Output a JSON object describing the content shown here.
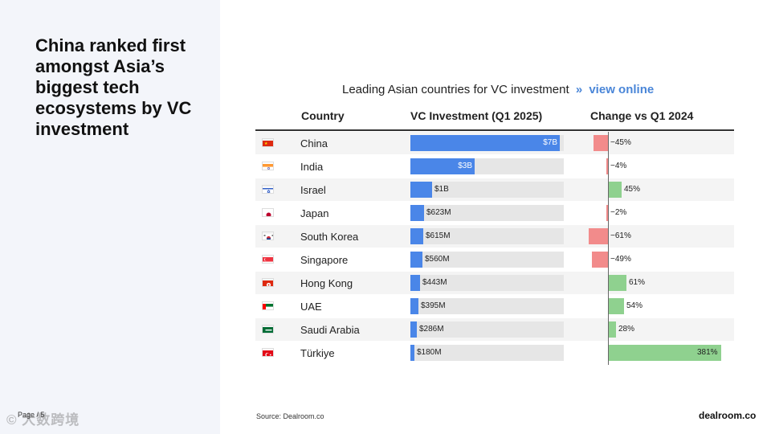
{
  "headline": "China ranked first amongst Asia’s biggest tech ecosystems by VC investment",
  "page_label": "Page / 5",
  "watermark": "© 大数跨境",
  "chart_title": "Leading Asian countries for VC investment",
  "chart_link_sep": "»",
  "chart_link": "view online",
  "columns": {
    "country": "Country",
    "investment": "VC Investment (Q1 2025)",
    "change": "Change vs Q1 2024"
  },
  "source": "Source:  Dealroom.co",
  "logo": "dealroom.co",
  "colors": {
    "investment_bar": "#4a86e8",
    "negative": "#f28b8b",
    "positive": "#8fd18f",
    "track": "#e6e6e6"
  },
  "chart_data": {
    "type": "table",
    "title": "Leading Asian countries for VC investment",
    "columns": [
      "Country",
      "VC Investment (Q1 2025)",
      "Change vs Q1 2024"
    ],
    "rows": [
      {
        "flag": "china-flag-icon",
        "country": "China",
        "investment_usd_m": 7000,
        "investment_label": "$7B",
        "change_pct": -45,
        "change_label": "−45%"
      },
      {
        "flag": "india-flag-icon",
        "country": "India",
        "investment_usd_m": 3000,
        "investment_label": "$3B",
        "change_pct": -4,
        "change_label": "−4%"
      },
      {
        "flag": "israel-flag-icon",
        "country": "Israel",
        "investment_usd_m": 1000,
        "investment_label": "$1B",
        "change_pct": 45,
        "change_label": "45%"
      },
      {
        "flag": "japan-flag-icon",
        "country": "Japan",
        "investment_usd_m": 623,
        "investment_label": "$623M",
        "change_pct": -2,
        "change_label": "−2%"
      },
      {
        "flag": "south-korea-flag-icon",
        "country": "South Korea",
        "investment_usd_m": 615,
        "investment_label": "$615M",
        "change_pct": -61,
        "change_label": "−61%"
      },
      {
        "flag": "singapore-flag-icon",
        "country": "Singapore",
        "investment_usd_m": 560,
        "investment_label": "$560M",
        "change_pct": -49,
        "change_label": "−49%"
      },
      {
        "flag": "hong-kong-flag-icon",
        "country": "Hong Kong",
        "investment_usd_m": 443,
        "investment_label": "$443M",
        "change_pct": 61,
        "change_label": "61%"
      },
      {
        "flag": "uae-flag-icon",
        "country": "UAE",
        "investment_usd_m": 395,
        "investment_label": "$395M",
        "change_pct": 54,
        "change_label": "54%"
      },
      {
        "flag": "saudi-arabia-flag-icon",
        "country": "Saudi Arabia",
        "investment_usd_m": 286,
        "investment_label": "$286M",
        "change_pct": 28,
        "change_label": "28%"
      },
      {
        "flag": "turkiye-flag-icon",
        "country": "Türkiye",
        "investment_usd_m": 180,
        "investment_label": "$180M",
        "change_pct": 381,
        "change_label": "381%"
      }
    ]
  }
}
